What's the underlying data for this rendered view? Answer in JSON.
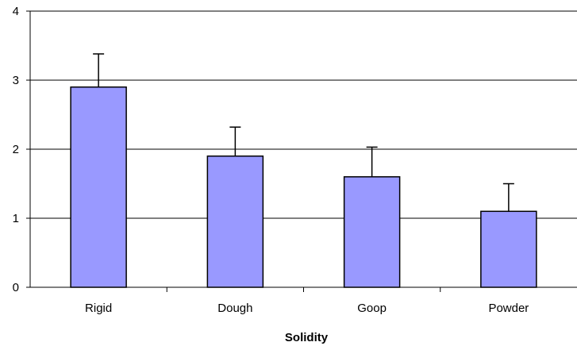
{
  "chart_data": {
    "type": "bar",
    "categories": [
      "Rigid",
      "Dough",
      "Goop",
      "Powder"
    ],
    "values": [
      2.9,
      1.9,
      1.6,
      1.1
    ],
    "error_upper": [
      0.48,
      0.42,
      0.43,
      0.4
    ],
    "title": "",
    "xlabel": "Solidity",
    "ylabel": "",
    "ylim": [
      0,
      4
    ],
    "yticks": [
      0,
      1,
      2,
      3,
      4
    ],
    "grid": true,
    "legend": "none",
    "colors": {
      "bar_fill": "#9999ff",
      "bar_stroke": "#000000",
      "grid": "#000000",
      "axis": "#000000"
    }
  }
}
